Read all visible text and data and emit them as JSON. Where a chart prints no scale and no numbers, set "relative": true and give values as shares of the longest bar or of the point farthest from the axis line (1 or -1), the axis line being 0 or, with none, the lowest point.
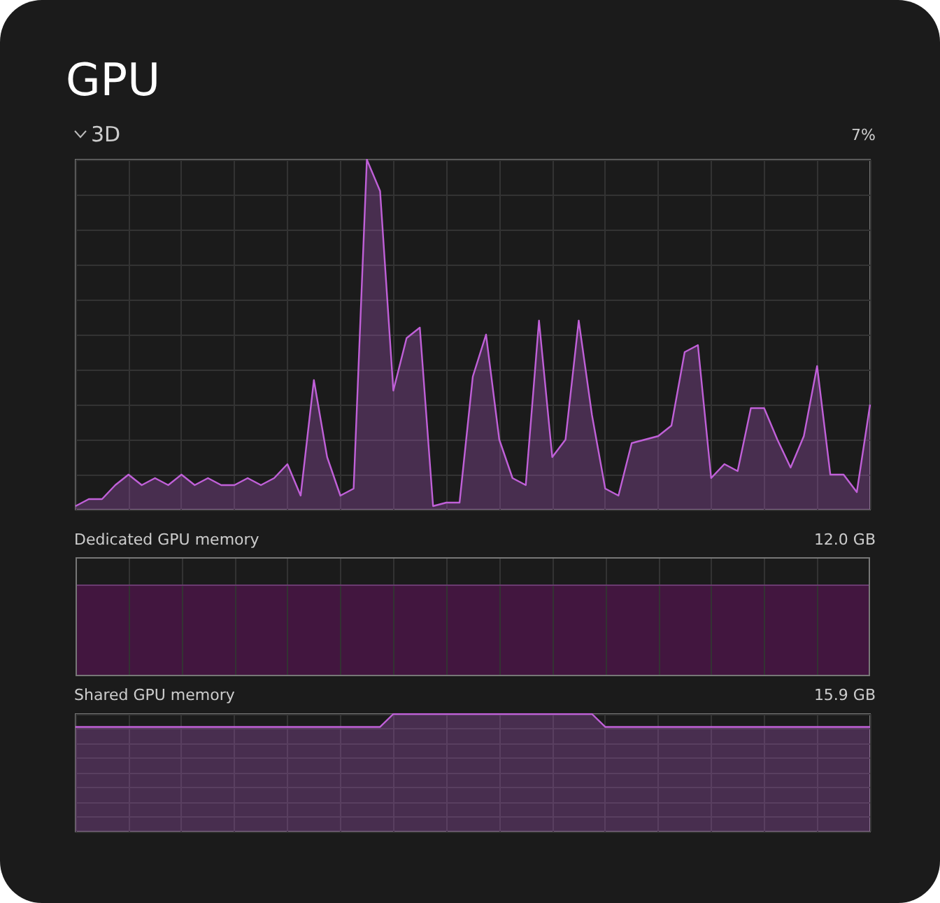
{
  "chart_data": [
    {
      "type": "area",
      "title": "GPU",
      "subtitle": "3D",
      "annotations": [
        "7%"
      ],
      "relative": true,
      "grid": true,
      "categories": [
        null,
        null,
        null,
        null,
        null,
        null,
        null,
        null,
        null,
        null,
        null,
        null,
        null,
        null,
        null,
        null,
        null,
        null,
        null,
        null,
        null,
        null,
        null,
        null,
        null,
        null,
        null,
        null,
        null,
        null,
        null,
        null,
        null,
        null,
        null,
        null,
        null,
        null,
        null,
        null,
        null,
        null,
        null,
        null,
        null,
        null,
        null,
        null,
        null,
        null,
        null,
        null,
        null,
        null,
        null,
        null,
        null,
        null,
        null,
        null,
        null
      ],
      "series": [
        {
          "color": "#c060d8",
          "values": [
            0.01,
            0.03,
            0.03,
            0.07,
            0.1,
            0.07,
            0.09,
            0.07,
            0.1,
            0.07,
            0.09,
            0.07,
            0.07,
            0.09,
            0.07,
            0.09,
            0.13,
            0.04,
            0.37,
            0.15,
            0.04,
            0.06,
            1,
            0.91,
            0.34,
            0.49,
            0.52,
            0.01,
            0.02,
            0.02,
            0.38,
            0.5,
            0.2,
            0.09,
            0.07,
            0.54,
            0.15,
            0.2,
            0.54,
            0.27,
            0.06,
            0.04,
            0.19,
            0.2,
            0.21,
            0.24,
            0.45,
            0.47,
            0.09,
            0.13,
            0.11,
            0.29,
            0.29,
            0.2,
            0.12,
            0.21,
            0.41,
            0.1,
            0.1,
            0.05,
            0.3
          ]
        }
      ]
    },
    {
      "type": "other",
      "title": "Dedicated GPU memory",
      "annotations": [
        "12.0 GB"
      ]
    },
    {
      "type": "area",
      "title": "Shared GPU memory",
      "annotations": [
        "15.9 GB"
      ],
      "relative": true,
      "grid": true,
      "categories": [
        null,
        null,
        null,
        null,
        null,
        null,
        null,
        null,
        null,
        null,
        null,
        null,
        null,
        null,
        null,
        null,
        null,
        null,
        null,
        null,
        null,
        null,
        null,
        null,
        null,
        null,
        null,
        null,
        null,
        null,
        null,
        null,
        null,
        null,
        null,
        null,
        null,
        null,
        null,
        null,
        null,
        null,
        null,
        null,
        null,
        null,
        null,
        null,
        null,
        null,
        null,
        null,
        null,
        null,
        null,
        null,
        null,
        null,
        null,
        null,
        null
      ],
      "series": [
        {
          "color": "#c060d8",
          "values": [
            0.89,
            0.89,
            0.89,
            0.89,
            0.89,
            0.89,
            0.89,
            0.89,
            0.89,
            0.89,
            0.89,
            0.89,
            0.89,
            0.89,
            0.89,
            0.89,
            0.89,
            0.89,
            0.89,
            0.89,
            0.89,
            0.89,
            0.89,
            0.89,
            1,
            1,
            1,
            1,
            1,
            1,
            1,
            1,
            1,
            1,
            1,
            1,
            1,
            1,
            1,
            1,
            0.89,
            0.89,
            0.89,
            0.89,
            0.89,
            0.89,
            0.89,
            0.89,
            0.89,
            0.89,
            0.89,
            0.89,
            0.89,
            0.89,
            0.89,
            0.89,
            0.89,
            0.89,
            0.89,
            0.89,
            0.89
          ]
        }
      ]
    }
  ]
}
